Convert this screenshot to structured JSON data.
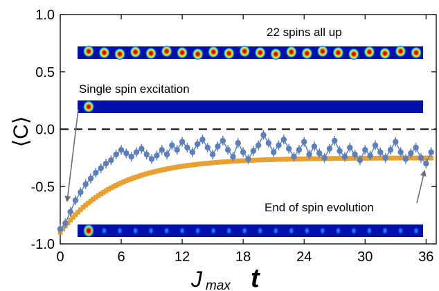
{
  "chart_data": {
    "type": "line",
    "xlabel_main": "J",
    "xlabel_sub": "max",
    "xlabel_var": "t",
    "ylabel": "⟨C⟩",
    "xlim": [
      0,
      37
    ],
    "ylim": [
      -1.0,
      1.0
    ],
    "xticks": [
      0,
      6,
      12,
      18,
      24,
      30,
      36
    ],
    "xtick_labels": [
      "0",
      "6",
      "12",
      "18",
      "24",
      "30",
      "36"
    ],
    "yticks": [
      -1.0,
      -0.5,
      0.0,
      0.5,
      1.0
    ],
    "ytick_labels": [
      "-1.0",
      "-0.5",
      "0.0",
      "0.5",
      "1.0"
    ],
    "reference_line": {
      "y": 0.0,
      "style": "dashed"
    },
    "series": [
      {
        "marker": "circle",
        "color": "#5b7fbd",
        "x": [
          0,
          0.5,
          1,
          1.5,
          2,
          2.5,
          3,
          3.5,
          4,
          4.5,
          5,
          5.5,
          6,
          6.5,
          7,
          7.5,
          8,
          8.5,
          9,
          9.5,
          10,
          10.5,
          11,
          11.5,
          12,
          12.5,
          13,
          13.5,
          14,
          14.5,
          15,
          15.5,
          16,
          16.5,
          17,
          17.5,
          18,
          18.5,
          19,
          19.5,
          20,
          20.5,
          21,
          21.5,
          22,
          22.5,
          23,
          23.5,
          24,
          24.5,
          25,
          25.5,
          26,
          26.5,
          27,
          27.5,
          28,
          28.5,
          29,
          29.5,
          30,
          30.5,
          31,
          31.5,
          32,
          32.5,
          33,
          33.5,
          34,
          34.5,
          35,
          35.5,
          36,
          36.5
        ],
        "y": [
          -0.87,
          -0.82,
          -0.72,
          -0.62,
          -0.55,
          -0.48,
          -0.43,
          -0.38,
          -0.34,
          -0.3,
          -0.27,
          -0.22,
          -0.18,
          -0.21,
          -0.24,
          -0.2,
          -0.17,
          -0.22,
          -0.26,
          -0.23,
          -0.18,
          -0.22,
          -0.14,
          -0.18,
          -0.11,
          -0.16,
          -0.2,
          -0.13,
          -0.09,
          -0.16,
          -0.22,
          -0.15,
          -0.1,
          -0.18,
          -0.24,
          -0.12,
          -0.2,
          -0.26,
          -0.19,
          -0.14,
          -0.05,
          -0.12,
          -0.2,
          -0.14,
          -0.09,
          -0.17,
          -0.24,
          -0.18,
          -0.11,
          -0.22,
          -0.15,
          -0.21,
          -0.25,
          -0.17,
          -0.1,
          -0.19,
          -0.24,
          -0.16,
          -0.22,
          -0.27,
          -0.18,
          -0.23,
          -0.14,
          -0.2,
          -0.25,
          -0.18,
          -0.11,
          -0.2,
          -0.26,
          -0.21,
          -0.16,
          -0.25,
          -0.3,
          -0.2
        ]
      },
      {
        "marker": "square",
        "color": "#e8a030",
        "x_start": 0,
        "x_end": 36.5,
        "x_step": 0.25,
        "model": {
          "y_inf": -0.25,
          "y0": -0.9,
          "tau": 5.5
        }
      }
    ],
    "annotations": [
      {
        "text": "22 spins all up"
      },
      {
        "text": "Single spin excitation"
      },
      {
        "text": "End of spin evolution"
      }
    ],
    "insets": [
      {
        "name": "22 spins all up",
        "bright_spots": 22
      },
      {
        "name": "single spin excitation",
        "bright_spots": 1
      },
      {
        "name": "end of spin evolution",
        "bright_spots": 22,
        "faded": true
      }
    ]
  }
}
